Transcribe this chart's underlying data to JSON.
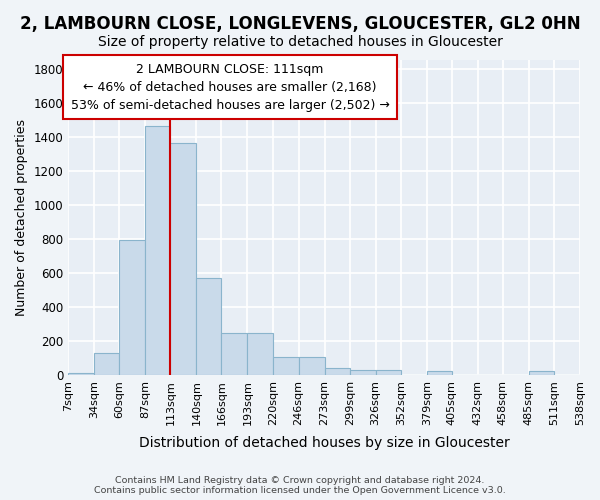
{
  "title1": "2, LAMBOURN CLOSE, LONGLEVENS, GLOUCESTER, GL2 0HN",
  "title2": "Size of property relative to detached houses in Gloucester",
  "xlabel": "Distribution of detached houses by size in Gloucester",
  "ylabel": "Number of detached properties",
  "bin_edges": [
    7,
    34,
    60,
    87,
    113,
    140,
    166,
    193,
    220,
    246,
    273,
    299,
    326,
    352,
    379,
    405,
    432,
    458,
    485,
    511,
    538
  ],
  "bar_heights": [
    10,
    130,
    790,
    1465,
    1360,
    570,
    245,
    245,
    105,
    105,
    40,
    30,
    30,
    0,
    20,
    0,
    0,
    0,
    20,
    0
  ],
  "bar_color": "#c9daea",
  "bar_edge_color": "#8ab4cc",
  "vline_x": 113,
  "vline_color": "#cc0000",
  "annotation_text": "2 LAMBOURN CLOSE: 111sqm\n← 46% of detached houses are smaller (2,168)\n53% of semi-detached houses are larger (2,502) →",
  "annotation_box_color": "white",
  "annotation_box_edgecolor": "#cc0000",
  "ylim": [
    0,
    1850
  ],
  "yticks": [
    0,
    200,
    400,
    600,
    800,
    1000,
    1200,
    1400,
    1600,
    1800
  ],
  "footer_text": "Contains HM Land Registry data © Crown copyright and database right 2024.\nContains public sector information licensed under the Open Government Licence v3.0.",
  "background_color": "#f0f4f8",
  "plot_bg_color": "#e8eef5",
  "grid_color": "#ffffff",
  "title1_fontsize": 12,
  "title2_fontsize": 10,
  "tick_label_fontsize": 8,
  "xlabel_fontsize": 10,
  "ylabel_fontsize": 9,
  "annot_fontsize": 9
}
